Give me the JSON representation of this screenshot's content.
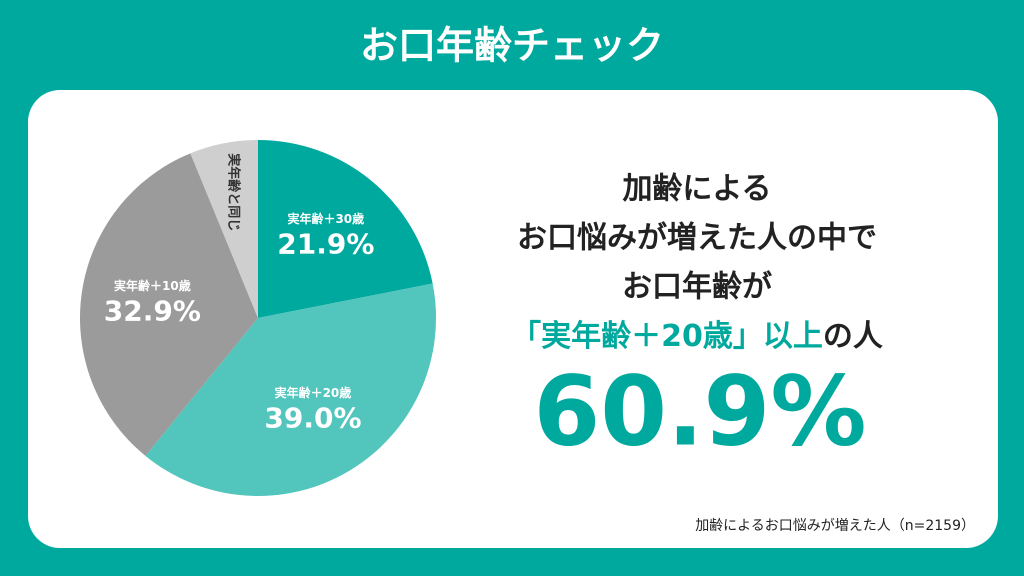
{
  "chart_data": {
    "type": "pie",
    "title": "お口年齢チェック",
    "categories": [
      "実年齢＋30歳",
      "実年齢＋20歳",
      "実年齢＋10歳",
      "実年齢と同じ"
    ],
    "values": [
      21.9,
      39.0,
      32.9,
      6.2
    ],
    "value_labels": [
      "21.9%",
      "39.0%",
      "32.9%",
      null
    ],
    "colors": [
      "#00a99d",
      "#52c5bc",
      "#9b9b9b",
      "#cfcfcf"
    ]
  },
  "message": {
    "lines": [
      "加齢による",
      "お口悩みが増えた人の中で",
      "お口年齢が"
    ],
    "highlight_line": [
      "「実年齢＋20歳」以上",
      "の人"
    ],
    "headline": "60.9%"
  },
  "note": "加齢によるお口悩みが増えた人（n=2159）"
}
